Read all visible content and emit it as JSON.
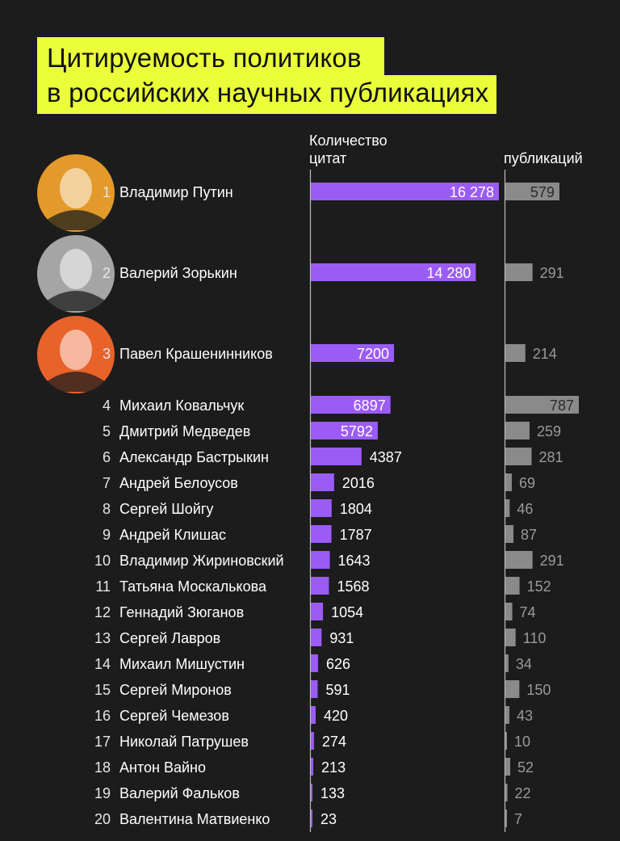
{
  "header": {
    "title_line1": "Цитируемость политиков",
    "title_line2": "в российских научных публикациях"
  },
  "columns": {
    "citations_label_line1": "Количество",
    "citations_label_line2": "цитат",
    "publications_label": "публикаций"
  },
  "colors": {
    "background": "#1c1c1c",
    "title_highlight": "#eaff3a",
    "citations_bar": "#9b5cf6",
    "publications_bar": "#8a8a8a"
  },
  "avatars": [
    {
      "rank": 1,
      "bg": "#e39a2a",
      "icon": "portrait-photo"
    },
    {
      "rank": 2,
      "bg": "#a5a5a5",
      "icon": "portrait-photo"
    },
    {
      "rank": 3,
      "bg": "#e8622a",
      "icon": "portrait-photo"
    }
  ],
  "chart_data": {
    "type": "bar",
    "orientation": "horizontal",
    "categories": [
      "Владимир Путин",
      "Валерий Зорькин",
      "Павел Крашенинников",
      "Михаил Ковальчук",
      "Дмитрий Медведев",
      "Александр Бастрыкин",
      "Андрей Белоусов",
      "Сергей Шойгу",
      "Андрей Клишас",
      "Владимир Жириновский",
      "Татьяна Москалькова",
      "Геннадий Зюганов",
      "Сергей Лавров",
      "Михаил Мишустин",
      "Сергей Миронов",
      "Сергей Чемезов",
      "Николай Патрушев",
      "Антон Вайно",
      "Валерий Фальков",
      "Валентина Матвиенко"
    ],
    "ranks": [
      "1",
      "2",
      "3",
      "4",
      "5",
      "6",
      "7",
      "8",
      "9",
      "10",
      "11",
      "12",
      "13",
      "14",
      "15",
      "16",
      "17",
      "18",
      "19",
      "20"
    ],
    "series": [
      {
        "name": "Количество цитат",
        "values": [
          16278,
          14280,
          7200,
          6897,
          5792,
          4387,
          2016,
          1804,
          1787,
          1643,
          1568,
          1054,
          931,
          626,
          591,
          420,
          274,
          213,
          133,
          23
        ],
        "labels": [
          "16 278",
          "14 280",
          "7200",
          "6897",
          "5792",
          "4387",
          "2016",
          "1804",
          "1787",
          "1643",
          "1568",
          "1054",
          "931",
          "626",
          "591",
          "420",
          "274",
          "213",
          "133",
          "23"
        ]
      },
      {
        "name": "Количество публикаций",
        "values": [
          579,
          291,
          214,
          787,
          259,
          281,
          69,
          46,
          87,
          291,
          152,
          74,
          110,
          34,
          150,
          43,
          10,
          52,
          22,
          7
        ],
        "labels": [
          "579",
          "291",
          "214",
          "787",
          "259",
          "281",
          "69",
          "46",
          "87",
          "291",
          "152",
          "74",
          "110",
          "34",
          "150",
          "43",
          "10",
          "52",
          "22",
          "7"
        ]
      }
    ]
  }
}
